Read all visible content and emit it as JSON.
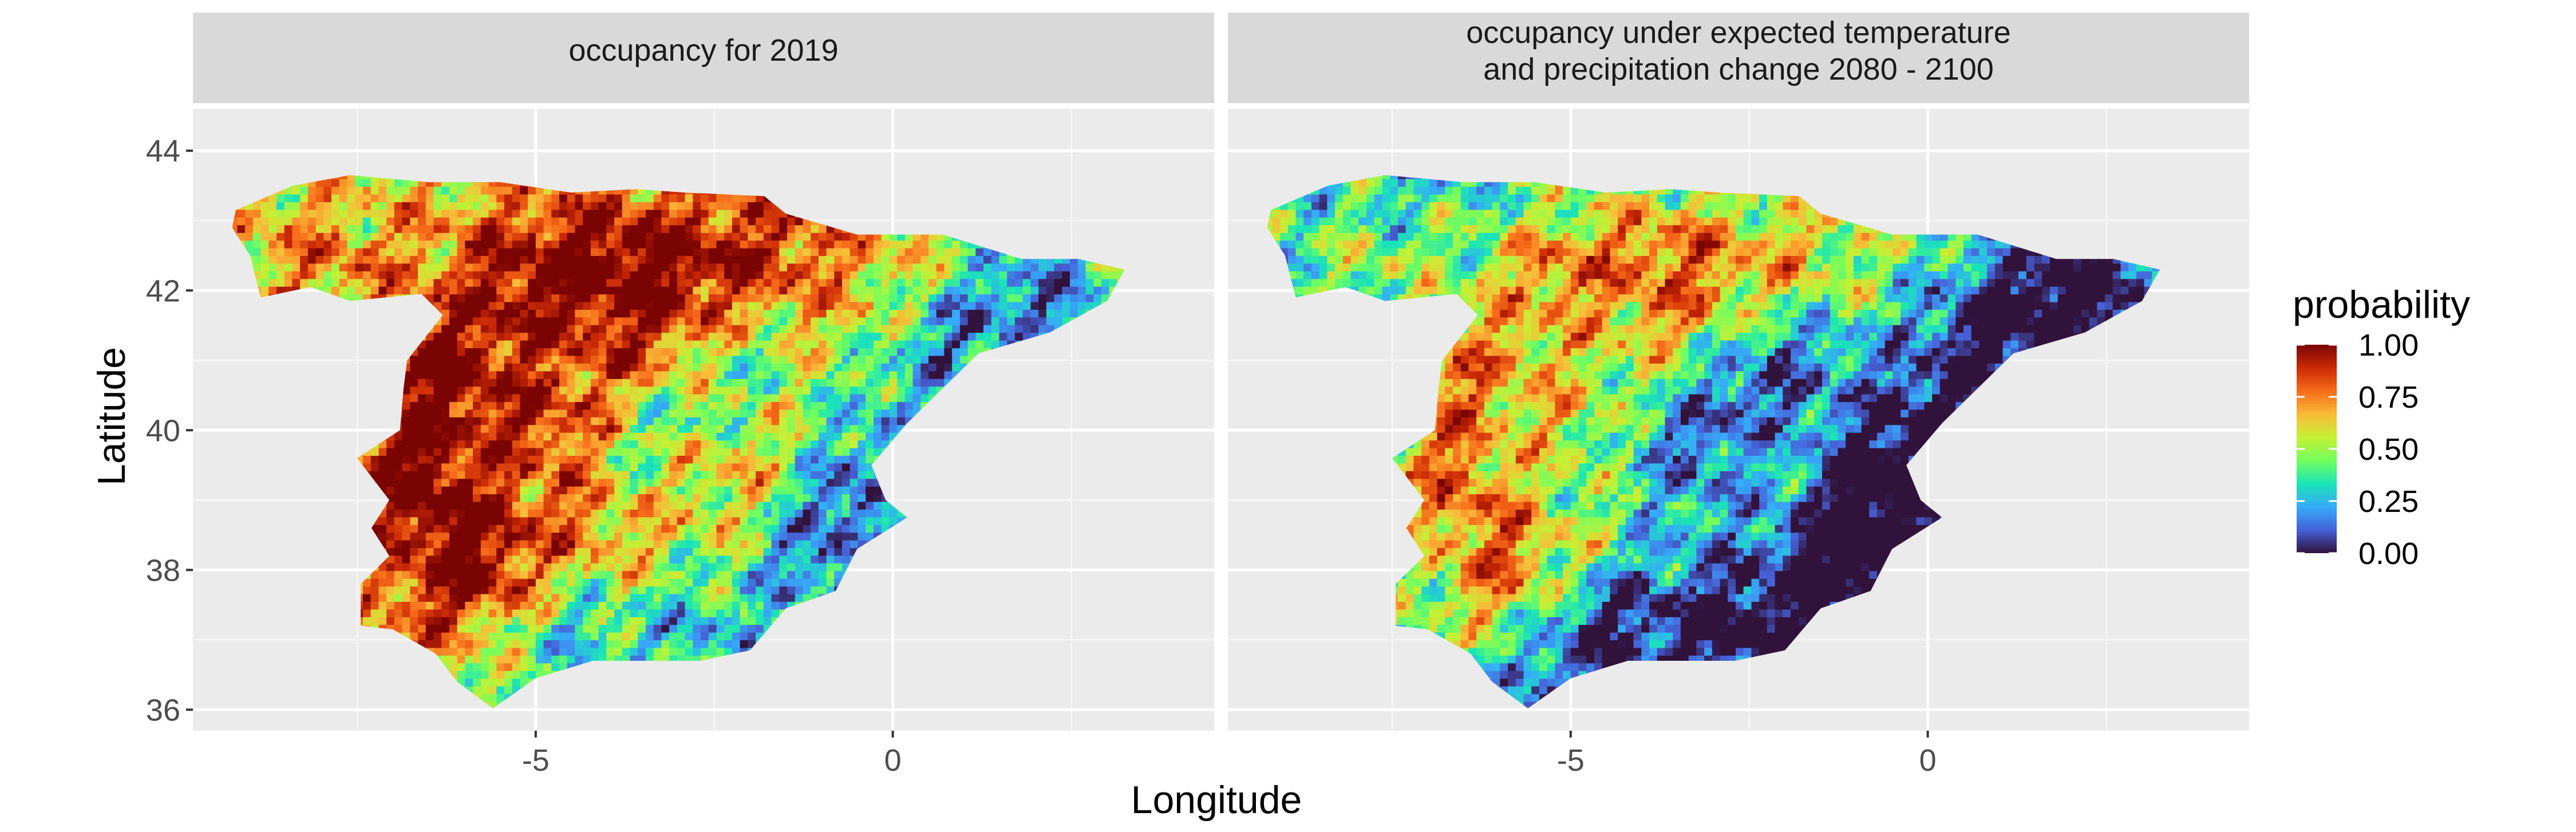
{
  "chart_data": {
    "type": "heatmap",
    "xlabel": "Longitude",
    "ylabel": "Latitude",
    "xlim": [
      -9.8,
      4.5
    ],
    "ylim": [
      35.7,
      44.6
    ],
    "x_ticks": [
      -5,
      0
    ],
    "x_tick_labels": [
      "-5",
      "0"
    ],
    "y_ticks": [
      36,
      38,
      40,
      42,
      44
    ],
    "y_tick_labels": [
      "36",
      "38",
      "40",
      "42",
      "44"
    ],
    "grid": true,
    "legend": {
      "title": "probability",
      "placement": "right",
      "type": "continuous colorbar",
      "range": [
        0,
        1
      ],
      "breaks": [
        1.0,
        0.75,
        0.5,
        0.25,
        0.0
      ],
      "break_labels": [
        "1.00",
        "0.75",
        "0.50",
        "0.25",
        "0.00"
      ],
      "palette": [
        "#30123B",
        "#4662D7",
        "#36AAF9",
        "#1AE4B6",
        "#72FE5E",
        "#C7EF34",
        "#FABA39",
        "#F66B19",
        "#CA2A04",
        "#7A0403"
      ]
    },
    "panels": [
      {
        "title_lines": [
          "occupancy for 2019"
        ],
        "overall_level": 0.65
      },
      {
        "title_lines": [
          "occupancy under expected temperature",
          "and precipitation change 2080 - 2100"
        ],
        "overall_level": 0.38
      }
    ]
  }
}
